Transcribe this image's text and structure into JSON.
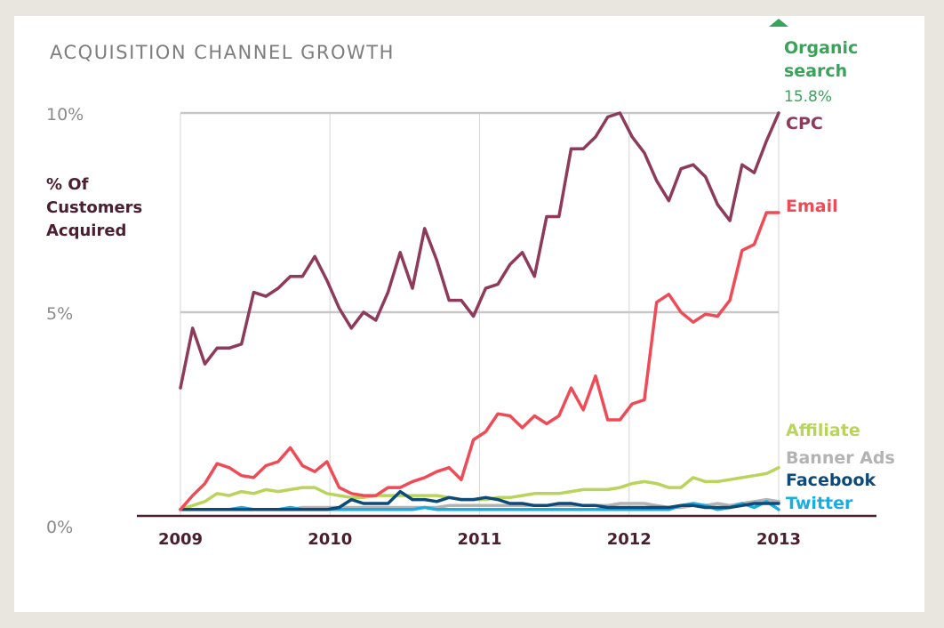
{
  "chart_data": {
    "type": "line",
    "title": "ACQUISITION CHANNEL GROWTH",
    "ylabel": [
      "% Of",
      "Customers",
      "Acquired"
    ],
    "yticks": [
      {
        "value": 10,
        "label": "10%"
      },
      {
        "value": 5,
        "label": "5%"
      },
      {
        "value": 0,
        "label": "0%"
      }
    ],
    "xticks": [
      {
        "value": 2009,
        "label": "2009"
      },
      {
        "value": 2010,
        "label": "2010"
      },
      {
        "value": 2011,
        "label": "2011"
      },
      {
        "value": 2012,
        "label": "2012"
      },
      {
        "value": 2013,
        "label": "2013"
      }
    ],
    "ylim": [
      0,
      10
    ],
    "xlim": [
      2009,
      2013
    ],
    "organic_search": {
      "label_lines": [
        "Organic",
        "search"
      ],
      "value_label": "15.8%",
      "value": 15.8,
      "color": "#3aa35a"
    },
    "series": [
      {
        "name": "CPC",
        "color": "#8e3a5a",
        "values": [
          3.1,
          4.6,
          3.7,
          4.1,
          4.1,
          4.2,
          5.5,
          5.4,
          5.6,
          5.9,
          5.9,
          6.4,
          5.8,
          5.1,
          4.6,
          5.0,
          4.8,
          5.5,
          6.5,
          5.6,
          7.1,
          6.3,
          5.3,
          5.3,
          4.9,
          5.6,
          5.7,
          6.2,
          6.5,
          5.9,
          7.4,
          7.4,
          9.1,
          9.1,
          9.4,
          9.9,
          10.0,
          9.4,
          9.0,
          8.3,
          7.8,
          8.6,
          8.7,
          8.4,
          7.7,
          7.3,
          8.7,
          8.5,
          9.3,
          10.0
        ]
      },
      {
        "name": "Email",
        "color": "#ef4b57",
        "values": [
          0.05,
          0.4,
          0.7,
          1.2,
          1.1,
          0.9,
          0.85,
          1.15,
          1.25,
          1.6,
          1.15,
          1.0,
          1.25,
          0.6,
          0.45,
          0.4,
          0.4,
          0.6,
          0.6,
          0.75,
          0.85,
          1.0,
          1.1,
          0.8,
          1.8,
          2.0,
          2.45,
          2.4,
          2.1,
          2.4,
          2.2,
          2.4,
          3.1,
          2.55,
          3.4,
          2.3,
          2.3,
          2.7,
          2.8,
          5.25,
          5.45,
          5.0,
          4.75,
          4.95,
          4.9,
          5.3,
          6.55,
          6.7,
          7.5,
          7.5
        ]
      },
      {
        "name": "Affiliate",
        "color": "#b9d45a",
        "values": [
          0.05,
          0.15,
          0.25,
          0.45,
          0.4,
          0.5,
          0.45,
          0.55,
          0.5,
          0.55,
          0.6,
          0.6,
          0.45,
          0.4,
          0.35,
          0.35,
          0.4,
          0.4,
          0.4,
          0.4,
          0.4,
          0.4,
          0.35,
          0.3,
          0.3,
          0.3,
          0.35,
          0.35,
          0.4,
          0.45,
          0.45,
          0.45,
          0.5,
          0.55,
          0.55,
          0.55,
          0.6,
          0.7,
          0.75,
          0.7,
          0.6,
          0.6,
          0.85,
          0.75,
          0.75,
          0.8,
          0.85,
          0.9,
          0.95,
          1.1
        ]
      },
      {
        "name": "Banner Ads",
        "color": "#b3b3b3",
        "values": [
          0.05,
          0.05,
          0.05,
          0.05,
          0.05,
          0.05,
          0.05,
          0.05,
          0.05,
          0.05,
          0.1,
          0.1,
          0.1,
          0.1,
          0.1,
          0.1,
          0.1,
          0.1,
          0.1,
          0.1,
          0.1,
          0.1,
          0.15,
          0.15,
          0.15,
          0.15,
          0.15,
          0.15,
          0.15,
          0.15,
          0.15,
          0.15,
          0.15,
          0.15,
          0.15,
          0.15,
          0.2,
          0.2,
          0.2,
          0.15,
          0.1,
          0.1,
          0.15,
          0.15,
          0.2,
          0.15,
          0.2,
          0.25,
          0.3,
          0.25
        ]
      },
      {
        "name": "Facebook",
        "color": "#0d4a7a",
        "values": [
          0.05,
          0.05,
          0.05,
          0.05,
          0.05,
          0.05,
          0.05,
          0.05,
          0.05,
          0.05,
          0.05,
          0.05,
          0.05,
          0.1,
          0.3,
          0.2,
          0.2,
          0.2,
          0.5,
          0.3,
          0.3,
          0.25,
          0.35,
          0.3,
          0.3,
          0.35,
          0.3,
          0.2,
          0.2,
          0.15,
          0.15,
          0.2,
          0.2,
          0.15,
          0.15,
          0.1,
          0.1,
          0.1,
          0.1,
          0.1,
          0.1,
          0.15,
          0.15,
          0.1,
          0.1,
          0.1,
          0.15,
          0.2,
          0.2,
          0.2
        ]
      },
      {
        "name": "Twitter",
        "color": "#1aaee0",
        "values": [
          0.05,
          0.05,
          0.05,
          0.05,
          0.05,
          0.1,
          0.05,
          0.05,
          0.05,
          0.1,
          0.05,
          0.05,
          0.05,
          0.05,
          0.05,
          0.05,
          0.05,
          0.05,
          0.05,
          0.05,
          0.1,
          0.05,
          0.05,
          0.05,
          0.05,
          0.05,
          0.05,
          0.05,
          0.05,
          0.05,
          0.05,
          0.05,
          0.05,
          0.05,
          0.05,
          0.05,
          0.05,
          0.05,
          0.05,
          0.05,
          0.05,
          0.15,
          0.2,
          0.15,
          0.05,
          0.1,
          0.2,
          0.1,
          0.25,
          0.05
        ]
      }
    ]
  }
}
